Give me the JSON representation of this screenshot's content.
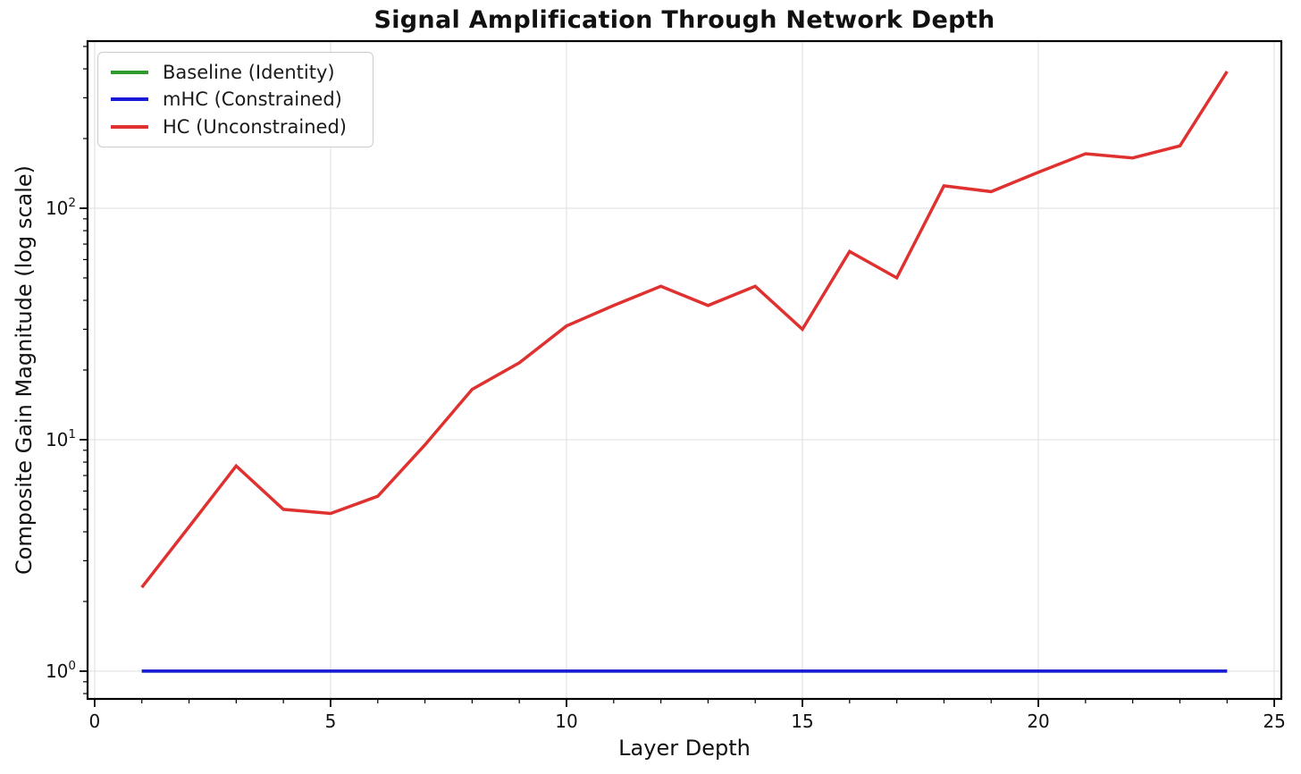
{
  "chart_data": {
    "type": "line",
    "title": "Signal Amplification Through Network Depth",
    "xlabel": "Layer Depth",
    "ylabel": "Composite Gain Magnitude (log scale)",
    "yscale": "log",
    "grid": "major",
    "legend_position": "upper-left",
    "x": [
      1,
      2,
      3,
      4,
      5,
      6,
      7,
      8,
      9,
      10,
      11,
      12,
      13,
      14,
      15,
      16,
      17,
      18,
      19,
      20,
      21,
      22,
      23,
      24
    ],
    "series": [
      {
        "name": "Baseline (Identity)",
        "color": "#2e9b2e",
        "values": [
          1,
          1,
          1,
          1,
          1,
          1,
          1,
          1,
          1,
          1,
          1,
          1,
          1,
          1,
          1,
          1,
          1,
          1,
          1,
          1,
          1,
          1,
          1,
          1
        ]
      },
      {
        "name": "mHC (Constrained)",
        "color": "#1a1ad9",
        "values": [
          1,
          1,
          1,
          1,
          1,
          1,
          1,
          1,
          1,
          1,
          1,
          1,
          1,
          1,
          1,
          1,
          1,
          1,
          1,
          1,
          1,
          1,
          1,
          1
        ]
      },
      {
        "name": "HC (Unconstrained)",
        "color": "#e03131",
        "values": [
          2.3,
          4.2,
          7.7,
          5.0,
          4.8,
          5.7,
          9.5,
          16.5,
          21.5,
          31,
          38,
          46,
          38,
          46,
          30,
          65,
          50,
          125,
          118,
          143,
          172,
          165,
          186,
          390
        ]
      }
    ],
    "xticks": [
      0,
      5,
      10,
      15,
      20,
      25
    ],
    "xticks_minor": [
      1,
      2,
      3,
      4,
      6,
      7,
      8,
      9,
      11,
      12,
      13,
      14,
      16,
      17,
      18,
      19,
      21,
      22,
      23,
      24
    ],
    "yticks": [
      {
        "base": "10",
        "exp": "0",
        "value": 1
      },
      {
        "base": "10",
        "exp": "1",
        "value": 10
      },
      {
        "base": "10",
        "exp": "2",
        "value": 100
      }
    ],
    "yticks_minor": [
      0.8,
      0.9,
      2,
      3,
      4,
      5,
      6,
      7,
      8,
      9,
      20,
      30,
      40,
      50,
      60,
      70,
      80,
      90,
      200,
      300,
      400,
      500
    ],
    "xlim": [
      -0.15,
      25.15
    ],
    "ylim_log": [
      -0.12,
      2.722
    ],
    "grid_color": "#e3e3e3",
    "spine_color": "#000000",
    "text_color": "#111111"
  }
}
